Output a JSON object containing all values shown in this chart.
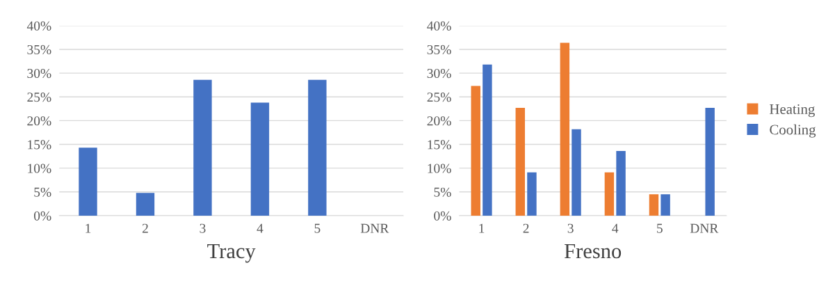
{
  "chart_data": [
    {
      "type": "bar",
      "title": "Tracy",
      "categories": [
        "1",
        "2",
        "3",
        "4",
        "5",
        "DNR"
      ],
      "series": [
        {
          "color": "#4472c4",
          "values": [
            14.3,
            4.8,
            28.6,
            23.8,
            28.6,
            0
          ]
        }
      ],
      "ylim": [
        0,
        40
      ],
      "yticks": [
        {
          "value": 0,
          "label": "0%"
        },
        {
          "value": 5,
          "label": "5%"
        },
        {
          "value": 10,
          "label": "10%"
        },
        {
          "value": 15,
          "label": "15%"
        },
        {
          "value": 20,
          "label": "20%"
        },
        {
          "value": 25,
          "label": "25%"
        },
        {
          "value": 30,
          "label": "30%"
        },
        {
          "value": 35,
          "label": "35%"
        },
        {
          "value": 40,
          "label": "40%"
        }
      ],
      "grid": "y",
      "legend": false
    },
    {
      "type": "bar",
      "title": "Fresno",
      "categories": [
        "1",
        "2",
        "3",
        "4",
        "5",
        "DNR"
      ],
      "series": [
        {
          "name": "Heating",
          "color": "#ed7d31",
          "values": [
            27.3,
            22.7,
            36.4,
            9.1,
            4.5,
            0
          ]
        },
        {
          "name": "Cooling",
          "color": "#4472c4",
          "values": [
            31.8,
            9.1,
            18.2,
            13.6,
            4.5,
            22.7
          ]
        }
      ],
      "ylim": [
        0,
        40
      ],
      "yticks": [
        {
          "value": 0,
          "label": "0%"
        },
        {
          "value": 5,
          "label": "5%"
        },
        {
          "value": 10,
          "label": "10%"
        },
        {
          "value": 15,
          "label": "15%"
        },
        {
          "value": 20,
          "label": "20%"
        },
        {
          "value": 25,
          "label": "25%"
        },
        {
          "value": 30,
          "label": "30%"
        },
        {
          "value": 35,
          "label": "35%"
        },
        {
          "value": 40,
          "label": "40%"
        }
      ],
      "grid": "y",
      "legend": "right"
    }
  ]
}
